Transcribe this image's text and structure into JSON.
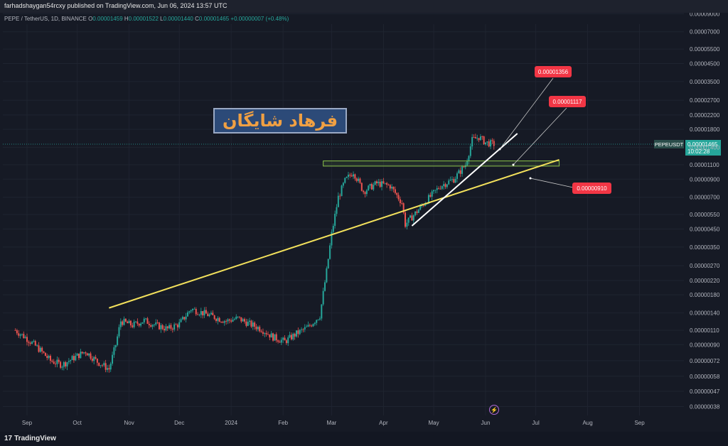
{
  "header": {
    "published": "farhadshaygan54rcxy published on TradingView.com, Jun 06, 2024 13:57 UTC"
  },
  "symbol_line": {
    "name": "PEPE / TetherUS, 1D, BINANCE",
    "o_label": "O",
    "o_value": "0.00001459",
    "h_label": "H",
    "h_value": "0.00001522",
    "l_label": "L",
    "l_value": "0.00001440",
    "c_label": "C",
    "c_value": "0.00001465",
    "change": "+0.00000007 (+0.48%)"
  },
  "brand_label": "فرهاد شایگان",
  "footer": {
    "logo_text": "TradingView",
    "logo_mark": "17"
  },
  "colors": {
    "background": "#161a25",
    "up": "#26a69a",
    "down": "#ef5350",
    "trendline_yellow": "#f3e15c",
    "trendline_white": "#ffffff",
    "zone": "#8bc34a",
    "label_red": "#f23645",
    "price_tag": "#26a69a"
  },
  "chart_data": {
    "type": "candlestick",
    "symbol": "PEPEUSDT",
    "scale": "log",
    "x_labels": [
      "Sep",
      "Oct",
      "Nov",
      "Dec",
      "2024",
      "Feb",
      "Mar",
      "Apr",
      "May",
      "Jun",
      "Jul",
      "Aug",
      "Sep"
    ],
    "y_ticks": [
      "0.00009000",
      "0.00007000",
      "0.00005500",
      "0.00004500",
      "0.00003500",
      "0.00002700",
      "0.00002200",
      "0.00001800",
      "0.00001400",
      "0.00001100",
      "0.00000900",
      "0.00000700",
      "0.00000550",
      "0.00000450",
      "0.00000350",
      "0.00000270",
      "0.00000220",
      "0.00000180",
      "0.00000140",
      "0.00000110",
      "0.00000090",
      "0.00000072",
      "0.00000058",
      "0.00000047",
      "0.00000038"
    ],
    "close_path": [
      [
        "2023-08-25",
        1.1e-06
      ],
      [
        "2023-09-01",
        9.8e-07
      ],
      [
        "2023-09-08",
        8.5e-07
      ],
      [
        "2023-09-15",
        7.2e-07
      ],
      [
        "2023-09-22",
        6.8e-07
      ],
      [
        "2023-09-29",
        7.5e-07
      ],
      [
        "2023-10-06",
        8.2e-07
      ],
      [
        "2023-10-13",
        7.1e-07
      ],
      [
        "2023-10-20",
        6.4e-07
      ],
      [
        "2023-10-24",
        9e-07
      ],
      [
        "2023-10-27",
        1.25e-06
      ],
      [
        "2023-11-03",
        1.18e-06
      ],
      [
        "2023-11-10",
        1.26e-06
      ],
      [
        "2023-11-17",
        1.18e-06
      ],
      [
        "2023-11-24",
        1.12e-06
      ],
      [
        "2023-12-01",
        1.2e-06
      ],
      [
        "2023-12-08",
        1.48e-06
      ],
      [
        "2023-12-15",
        1.4e-06
      ],
      [
        "2023-12-22",
        1.32e-06
      ],
      [
        "2023-12-29",
        1.25e-06
      ],
      [
        "2024-01-05",
        1.3e-06
      ],
      [
        "2024-01-12",
        1.2e-06
      ],
      [
        "2024-01-19",
        1.12e-06
      ],
      [
        "2024-01-26",
        1e-06
      ],
      [
        "2024-02-02",
        9.4e-07
      ],
      [
        "2024-02-09",
        1.05e-06
      ],
      [
        "2024-02-16",
        1.15e-06
      ],
      [
        "2024-02-23",
        1.35e-06
      ],
      [
        "2024-02-27",
        2.5e-06
      ],
      [
        "2024-03-01",
        4.2e-06
      ],
      [
        "2024-03-05",
        7e-06
      ],
      [
        "2024-03-09",
        8.8e-06
      ],
      [
        "2024-03-14",
        1e-05
      ],
      [
        "2024-03-20",
        7.6e-06
      ],
      [
        "2024-03-28",
        8.5e-06
      ],
      [
        "2024-04-05",
        8.2e-06
      ],
      [
        "2024-04-12",
        6.5e-06
      ],
      [
        "2024-04-14",
        4.8e-06
      ],
      [
        "2024-04-20",
        5.6e-06
      ],
      [
        "2024-04-28",
        6.9e-06
      ],
      [
        "2024-05-05",
        8.2e-06
      ],
      [
        "2024-05-13",
        9e-06
      ],
      [
        "2024-05-20",
        1.1e-05
      ],
      [
        "2024-05-24",
        1.55e-05
      ],
      [
        "2024-05-28",
        1.62e-05
      ],
      [
        "2024-06-01",
        1.5e-05
      ],
      [
        "2024-06-06",
        1.465e-05
      ]
    ],
    "last_price": "0.00001465",
    "countdown": "10:02:28",
    "annotations": [
      {
        "type": "zone",
        "y_low": 1.08e-05,
        "y_high": 1.16e-05,
        "x_start": "2024-02-25",
        "x_end": "2024-07-15"
      },
      {
        "type": "trendline",
        "color": "yellow",
        "p1": [
          "2023-10-20",
          1.5e-06
        ],
        "p2": [
          "2024-07-15",
          1.18e-05
        ]
      },
      {
        "type": "trendline",
        "color": "white",
        "p1": [
          "2024-04-18",
          4.7e-06
        ],
        "p2": [
          "2024-06-20",
          1.7e-05
        ]
      },
      {
        "type": "label",
        "text": "0.00001356"
      },
      {
        "type": "label",
        "text": "0.00001117"
      },
      {
        "type": "label",
        "text": "0.00000910"
      }
    ]
  }
}
